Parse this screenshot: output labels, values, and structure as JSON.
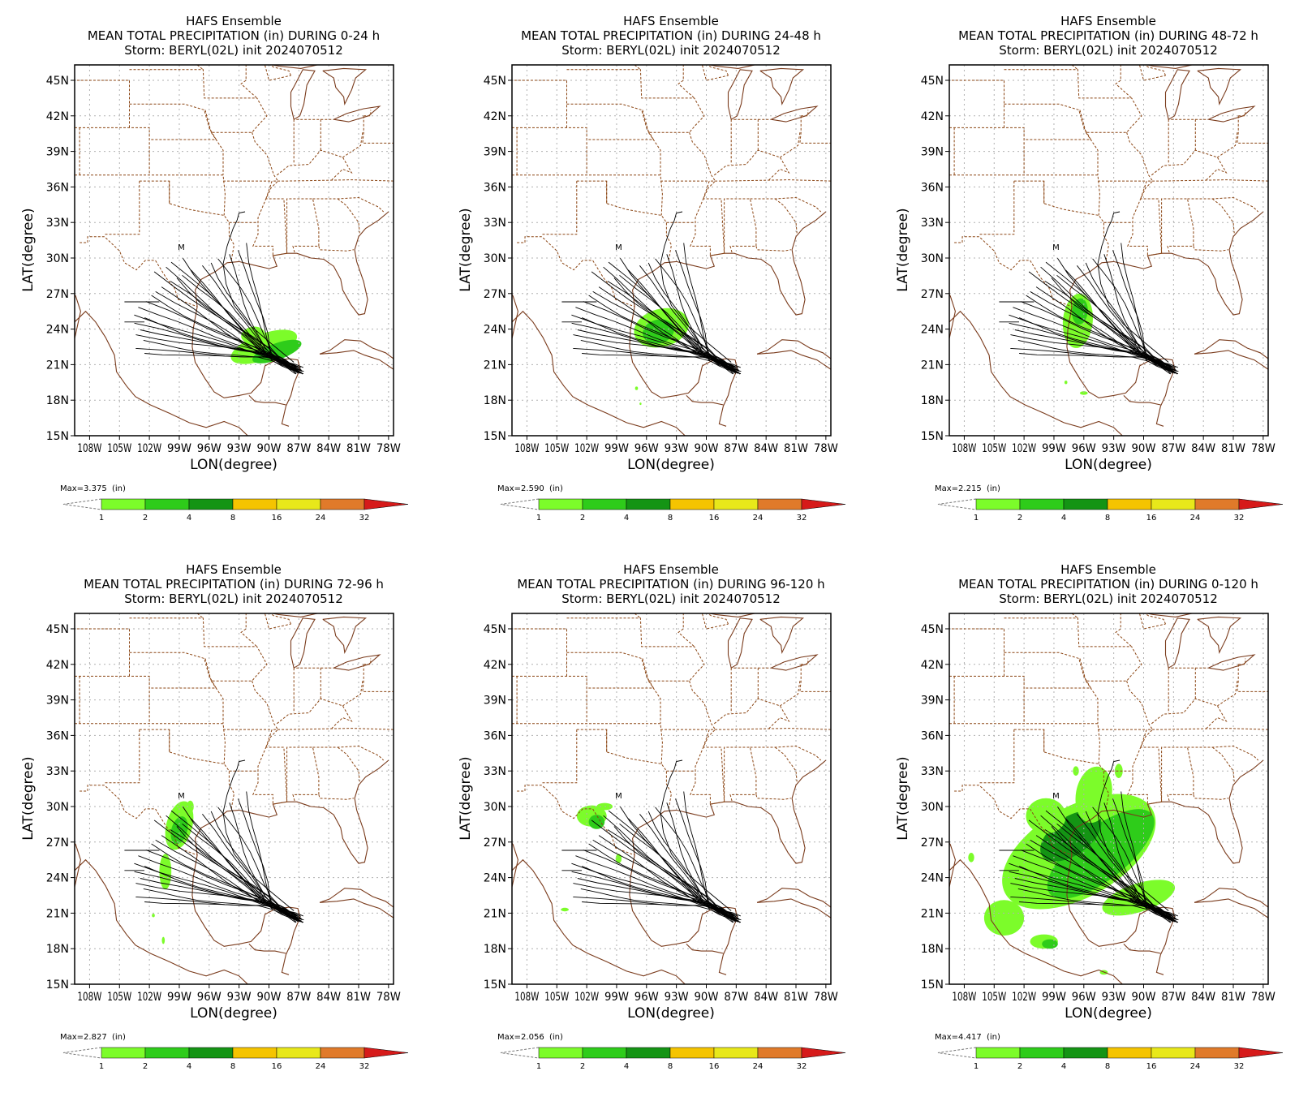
{
  "colors": {
    "border": "#8b4513",
    "grid": "#b0b0b0",
    "coast": "#7a3b1c",
    "track": "#000000",
    "precip_light": "#7cfc2a",
    "precip_mid": "#2ecc1a",
    "precip_dark": "#149414"
  },
  "colorbar": {
    "unit": "(in)",
    "labels": [
      "1",
      "2",
      "4",
      "8",
      "16",
      "24",
      "32"
    ],
    "colors": [
      "#7cfc2a",
      "#2ecc1a",
      "#149414",
      "#f5c400",
      "#e8e81a",
      "#e07a2a",
      "#d61a1a"
    ]
  },
  "axes": {
    "xlabel": "LON(degree)",
    "ylabel": "LAT(degree)",
    "lon_ticks": [
      "108W",
      "105W",
      "102W",
      "99W",
      "96W",
      "93W",
      "90W",
      "87W",
      "84W",
      "81W",
      "78W"
    ],
    "lat_ticks": [
      "15N",
      "18N",
      "21N",
      "24N",
      "27N",
      "30N",
      "33N",
      "36N",
      "39N",
      "42N",
      "45N"
    ]
  },
  "marker": "M",
  "panels": [
    {
      "title1": "HAFS Ensemble",
      "title2": "MEAN TOTAL PRECIPITATION (in) DURING  0-24 h",
      "title3": "Storm: BERYL(02L) init 2024070512",
      "max": "Max=3.375"
    },
    {
      "title1": "HAFS Ensemble",
      "title2": "MEAN TOTAL PRECIPITATION (in) DURING 24-48 h",
      "title3": "Storm: BERYL(02L) init 2024070512",
      "max": "Max=2.590"
    },
    {
      "title1": "HAFS Ensemble",
      "title2": "MEAN TOTAL PRECIPITATION (in) DURING 48-72 h",
      "title3": "Storm: BERYL(02L) init 2024070512",
      "max": "Max=2.215"
    },
    {
      "title1": "HAFS Ensemble",
      "title2": "MEAN TOTAL PRECIPITATION (in) DURING 72-96 h",
      "title3": "Storm: BERYL(02L) init 2024070512",
      "max": "Max=2.827"
    },
    {
      "title1": "HAFS Ensemble",
      "title2": "MEAN TOTAL PRECIPITATION (in) DURING 96-120 h",
      "title3": "Storm: BERYL(02L) init 2024070512",
      "max": "Max=2.056"
    },
    {
      "title1": "HAFS Ensemble",
      "title2": "MEAN TOTAL PRECIPITATION (in) DURING 0-120 h",
      "title3": "Storm: BERYL(02L) init 2024070512",
      "max": "Max=4.417"
    }
  ]
}
